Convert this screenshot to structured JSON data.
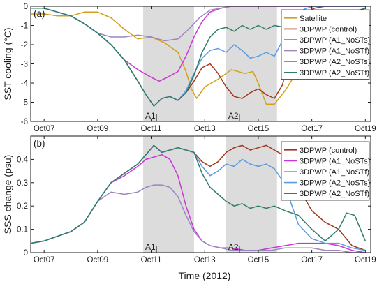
{
  "xlabel": "Time (2012)",
  "colors": {
    "satellite": "#d4a017",
    "control": "#a0361c",
    "A1_NoSTs": "#c935d6",
    "A1_NoSTf": "#9c86c0",
    "A2_NoSTs": "#5b9be0",
    "A2_NoSTf": "#2e7d6b",
    "shade": "#dcdcdc"
  },
  "chart_data": [
    {
      "type": "line",
      "panel_label": "(a)",
      "ylabel": "SST cooling (°C)",
      "xlim": [
        6.5,
        19.2
      ],
      "ylim": [
        -6,
        0
      ],
      "yticks": [
        0,
        -1,
        -2,
        -3,
        -4,
        -5,
        -6
      ],
      "xticks": [
        7,
        9,
        11,
        13,
        15,
        17,
        19
      ],
      "xticklabels": [
        "Oct07",
        "Oct09",
        "Oct11",
        "Oct13",
        "Oct15",
        "Oct17",
        "Oct19"
      ],
      "shaded_regions": [
        {
          "label": "A1",
          "x0": 10.7,
          "x1": 12.6
        },
        {
          "label": "A2",
          "x0": 13.8,
          "x1": 15.7
        }
      ],
      "legend": "top-right",
      "series": [
        {
          "name": "Satellite",
          "color_key": "satellite",
          "x": [
            6.5,
            7.0,
            7.5,
            8.0,
            8.5,
            9.0,
            9.5,
            10.0,
            10.5,
            11.0,
            11.5,
            12.0,
            12.3,
            12.5,
            12.7,
            13.0,
            13.5,
            14.0,
            14.5,
            14.8,
            15.0,
            15.3,
            15.6,
            16.0,
            16.5,
            17.0,
            17.5,
            18.0,
            18.5,
            19.0
          ],
          "y": [
            -0.4,
            -0.4,
            -0.5,
            -0.5,
            -0.3,
            -0.3,
            -0.6,
            -1.2,
            -1.7,
            -1.6,
            -1.9,
            -2.4,
            -3.4,
            -4.3,
            -4.8,
            -4.2,
            -3.8,
            -3.3,
            -3.5,
            -3.4,
            -4.0,
            -5.1,
            -5.1,
            -4.4,
            -3.3,
            -2.8,
            -1.5,
            -0.8,
            -0.4,
            -0.1
          ]
        },
        {
          "name": "3DPWP (control)",
          "color_key": "control",
          "x": [
            6.5,
            7.0,
            7.5,
            8.0,
            8.5,
            9.0,
            9.5,
            10.0,
            10.5,
            10.8,
            11.1,
            11.4,
            11.7,
            12.0,
            12.3,
            12.6,
            12.9,
            13.2,
            13.5,
            13.8,
            14.1,
            14.4,
            14.7,
            15.0,
            15.3,
            15.6,
            15.9,
            16.2,
            16.5,
            16.8,
            17.1,
            17.5,
            18.0,
            18.5,
            19.0
          ],
          "y": [
            -0.1,
            -0.1,
            -0.3,
            -0.5,
            -0.9,
            -1.4,
            -2.0,
            -2.8,
            -3.9,
            -4.6,
            -5.2,
            -4.8,
            -4.7,
            -4.9,
            -4.5,
            -3.9,
            -3.2,
            -3.0,
            -3.5,
            -4.2,
            -4.7,
            -4.8,
            -4.5,
            -4.3,
            -4.6,
            -4.8,
            -4.1,
            -2.4,
            -0.9,
            -0.3,
            -0.1,
            0.0,
            0.0,
            0.0,
            0.0
          ]
        },
        {
          "name": "3DPWP (A1_NoSTs)",
          "color_key": "A1_NoSTs",
          "x": [
            6.5,
            7.0,
            7.5,
            8.0,
            8.5,
            9.0,
            9.5,
            10.0,
            10.5,
            11.0,
            11.3,
            11.6,
            12.0,
            12.3,
            12.6,
            12.9,
            13.2,
            13.6,
            14.0,
            15.0,
            16.0,
            17.0,
            18.0,
            19.0
          ],
          "y": [
            -0.1,
            -0.1,
            -0.3,
            -0.5,
            -0.9,
            -1.4,
            -2.0,
            -2.8,
            -3.3,
            -3.7,
            -3.9,
            -3.7,
            -3.4,
            -2.6,
            -1.6,
            -0.8,
            -0.3,
            -0.1,
            0.0,
            0.0,
            0.0,
            0.0,
            0.0,
            0.0
          ]
        },
        {
          "name": "3DPWP (A1_NoSTf)",
          "color_key": "A1_NoSTf",
          "x": [
            6.5,
            7.0,
            7.5,
            8.0,
            8.5,
            9.0,
            9.5,
            10.0,
            10.5,
            11.0,
            11.5,
            12.0,
            12.4,
            12.8,
            13.2,
            13.6,
            14.0,
            15.0,
            16.0,
            17.0,
            18.0,
            19.0
          ],
          "y": [
            -0.1,
            -0.1,
            -0.3,
            -0.5,
            -0.9,
            -1.4,
            -1.6,
            -1.6,
            -1.5,
            -1.6,
            -1.8,
            -1.7,
            -1.2,
            -0.6,
            -0.2,
            -0.1,
            0.0,
            0.0,
            0.0,
            0.0,
            0.0,
            0.0
          ]
        },
        {
          "name": "3DPWP (A2_NoSTs)",
          "color_key": "A2_NoSTs",
          "x": [
            6.5,
            7.0,
            7.5,
            8.0,
            8.5,
            9.0,
            9.5,
            10.0,
            10.5,
            10.8,
            11.1,
            11.4,
            11.7,
            12.0,
            12.3,
            12.6,
            12.9,
            13.2,
            13.5,
            13.8,
            14.1,
            14.4,
            14.7,
            15.0,
            15.3,
            15.6,
            15.9,
            16.2,
            16.5,
            16.8,
            17.1,
            17.5,
            18.0,
            18.5,
            19.0
          ],
          "y": [
            -0.1,
            -0.1,
            -0.3,
            -0.5,
            -0.9,
            -1.4,
            -2.0,
            -2.8,
            -3.9,
            -4.6,
            -5.2,
            -4.8,
            -4.7,
            -4.9,
            -4.4,
            -3.5,
            -2.7,
            -2.3,
            -2.2,
            -2.4,
            -2.0,
            -2.3,
            -2.7,
            -2.6,
            -2.4,
            -2.6,
            -1.8,
            -0.8,
            -0.3,
            -0.1,
            0.0,
            0.0,
            0.0,
            0.0,
            0.0
          ]
        },
        {
          "name": "3DPWP (A2_NoSTf)",
          "color_key": "A2_NoSTf",
          "x": [
            6.5,
            7.0,
            7.5,
            8.0,
            8.5,
            9.0,
            9.5,
            10.0,
            10.5,
            10.8,
            11.1,
            11.4,
            11.7,
            12.0,
            12.3,
            12.6,
            12.9,
            13.2,
            13.5,
            13.8,
            14.1,
            14.4,
            14.7,
            15.0,
            15.3,
            15.6,
            16.0,
            16.5,
            17.0,
            17.5,
            18.0,
            18.5,
            19.0
          ],
          "y": [
            -0.1,
            -0.1,
            -0.3,
            -0.5,
            -0.9,
            -1.4,
            -2.0,
            -2.8,
            -3.9,
            -4.6,
            -5.2,
            -4.8,
            -4.7,
            -4.9,
            -4.5,
            -3.6,
            -2.4,
            -1.6,
            -1.2,
            -1.1,
            -1.3,
            -1.0,
            -1.2,
            -1.0,
            -1.2,
            -1.0,
            -1.1,
            -1.0,
            -1.1,
            -1.0,
            -0.8,
            -0.3,
            -0.1
          ]
        }
      ]
    },
    {
      "type": "line",
      "panel_label": "(b)",
      "ylabel": "SSS change (psu)",
      "xlim": [
        6.5,
        19.2
      ],
      "ylim": [
        0,
        0.5
      ],
      "yticks": [
        0,
        0.1,
        0.2,
        0.3,
        0.4
      ],
      "xticks": [
        7,
        9,
        11,
        13,
        15,
        17,
        19
      ],
      "xticklabels": [
        "Oct07",
        "Oct09",
        "Oct11",
        "Oct13",
        "Oct15",
        "Oct17",
        "Oct19"
      ],
      "shaded_regions": [
        {
          "label": "A1",
          "x0": 10.7,
          "x1": 12.6
        },
        {
          "label": "A2",
          "x0": 13.8,
          "x1": 15.7
        }
      ],
      "legend": "top-right",
      "series": [
        {
          "name": "3DPWP (control)",
          "color_key": "control",
          "x": [
            6.5,
            7.0,
            7.5,
            8.0,
            8.5,
            9.0,
            9.5,
            10.0,
            10.5,
            10.8,
            11.1,
            11.4,
            11.7,
            12.0,
            12.3,
            12.6,
            12.9,
            13.2,
            13.5,
            13.8,
            14.1,
            14.4,
            14.7,
            15.0,
            15.3,
            15.6,
            15.9,
            16.2,
            16.5,
            17.0,
            17.5,
            18.0,
            18.5,
            19.0
          ],
          "y": [
            0.04,
            0.05,
            0.07,
            0.09,
            0.13,
            0.22,
            0.3,
            0.34,
            0.38,
            0.42,
            0.46,
            0.43,
            0.44,
            0.45,
            0.44,
            0.43,
            0.39,
            0.37,
            0.39,
            0.43,
            0.45,
            0.46,
            0.44,
            0.45,
            0.46,
            0.44,
            0.42,
            0.37,
            0.28,
            0.18,
            0.13,
            0.1,
            0.03,
            0.01
          ]
        },
        {
          "name": "3DPWP (A1_NoSTs)",
          "color_key": "A1_NoSTs",
          "x": [
            6.5,
            7.0,
            7.5,
            8.0,
            8.5,
            9.0,
            9.5,
            10.0,
            10.5,
            10.8,
            11.1,
            11.4,
            11.7,
            12.0,
            12.3,
            12.6,
            12.9,
            13.2,
            13.6,
            14.0,
            14.5,
            15.0,
            15.5,
            16.0,
            16.5,
            17.0,
            17.5,
            18.0,
            18.5,
            19.0
          ],
          "y": [
            0.04,
            0.05,
            0.07,
            0.09,
            0.13,
            0.22,
            0.3,
            0.33,
            0.37,
            0.4,
            0.41,
            0.42,
            0.4,
            0.33,
            0.2,
            0.1,
            0.05,
            0.03,
            0.02,
            0.02,
            0.01,
            0.01,
            0.02,
            0.03,
            0.04,
            0.04,
            0.04,
            0.03,
            0.01,
            0.0
          ]
        },
        {
          "name": "3DPWP (A1_NoSTf)",
          "color_key": "A1_NoSTf",
          "x": [
            6.5,
            7.0,
            7.5,
            8.0,
            8.5,
            9.0,
            9.5,
            10.0,
            10.5,
            10.8,
            11.1,
            11.4,
            11.7,
            12.0,
            12.3,
            12.6,
            12.9,
            13.2,
            13.6,
            14.0,
            14.5,
            15.0,
            15.5,
            16.0,
            16.5,
            17.0,
            17.5,
            18.0,
            18.5,
            19.0
          ],
          "y": [
            0.04,
            0.05,
            0.07,
            0.09,
            0.13,
            0.22,
            0.26,
            0.25,
            0.26,
            0.28,
            0.29,
            0.29,
            0.28,
            0.24,
            0.16,
            0.09,
            0.05,
            0.03,
            0.02,
            0.01,
            0.01,
            0.01,
            0.01,
            0.02,
            0.02,
            0.02,
            0.01,
            0.01,
            0.0,
            0.0
          ]
        },
        {
          "name": "3DPWP (A2_NoSTs)",
          "color_key": "A2_NoSTs",
          "x": [
            6.5,
            7.0,
            7.5,
            8.0,
            8.5,
            9.0,
            9.5,
            10.0,
            10.5,
            10.8,
            11.1,
            11.4,
            11.7,
            12.0,
            12.3,
            12.6,
            12.9,
            13.2,
            13.5,
            13.8,
            14.1,
            14.4,
            14.7,
            15.0,
            15.3,
            15.6,
            15.9,
            16.2,
            16.5,
            17.0,
            17.5,
            18.0,
            18.5,
            19.0
          ],
          "y": [
            0.04,
            0.05,
            0.07,
            0.09,
            0.13,
            0.22,
            0.3,
            0.34,
            0.38,
            0.42,
            0.46,
            0.43,
            0.44,
            0.45,
            0.44,
            0.43,
            0.37,
            0.33,
            0.35,
            0.38,
            0.37,
            0.4,
            0.38,
            0.37,
            0.38,
            0.36,
            0.31,
            0.22,
            0.12,
            0.06,
            0.04,
            0.04,
            0.02,
            0.01
          ]
        },
        {
          "name": "3DPWP (A2_NoSTf)",
          "color_key": "A2_NoSTf",
          "x": [
            6.5,
            7.0,
            7.5,
            8.0,
            8.5,
            9.0,
            9.5,
            10.0,
            10.5,
            10.8,
            11.1,
            11.4,
            11.7,
            12.0,
            12.3,
            12.6,
            12.9,
            13.2,
            13.5,
            13.8,
            14.1,
            14.4,
            14.7,
            15.0,
            15.3,
            15.6,
            16.0,
            16.5,
            17.0,
            17.5,
            18.0,
            18.3,
            18.6,
            19.0
          ],
          "y": [
            0.04,
            0.05,
            0.07,
            0.09,
            0.13,
            0.22,
            0.3,
            0.34,
            0.38,
            0.42,
            0.46,
            0.43,
            0.44,
            0.45,
            0.44,
            0.43,
            0.34,
            0.28,
            0.25,
            0.22,
            0.2,
            0.21,
            0.19,
            0.2,
            0.19,
            0.2,
            0.18,
            0.16,
            0.1,
            0.05,
            0.1,
            0.17,
            0.16,
            0.05
          ]
        }
      ]
    }
  ]
}
